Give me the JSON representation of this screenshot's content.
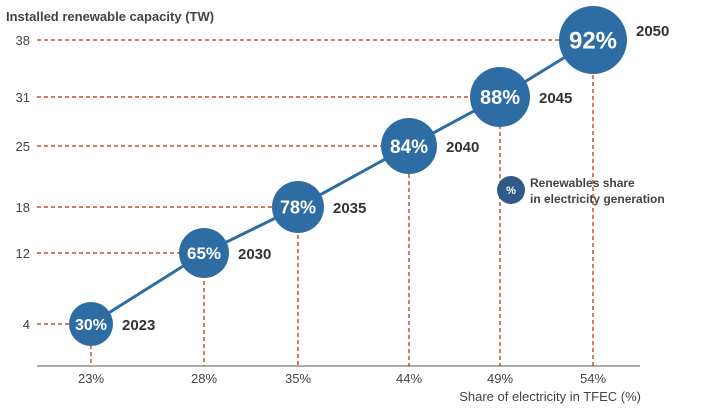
{
  "chart_data": {
    "type": "scatter",
    "ylabel": "Installed renewable capacity (TW)",
    "xlabel": "Share of electricity in TFEC (%)",
    "y_ticks": [
      4,
      12,
      18,
      25,
      31,
      38
    ],
    "x_ticks": [
      "23%",
      "28%",
      "35%",
      "44%",
      "49%",
      "54%"
    ],
    "points": [
      {
        "year": "2023",
        "x": 23,
        "y": 4,
        "renewables_share": "30%"
      },
      {
        "year": "2030",
        "x": 28,
        "y": 12,
        "renewables_share": "65%"
      },
      {
        "year": "2035",
        "x": 35,
        "y": 18,
        "renewables_share": "78%"
      },
      {
        "year": "2040",
        "x": 44,
        "y": 25,
        "renewables_share": "84%"
      },
      {
        "year": "2045",
        "x": 49,
        "y": 31,
        "renewables_share": "88%"
      },
      {
        "year": "2050",
        "x": 54,
        "y": 38,
        "renewables_share": "92%"
      }
    ],
    "legend": {
      "symbol": "%",
      "label_line1": "Renewables share",
      "label_line2": "in electricity generation"
    },
    "colors": {
      "bubble": "#2e6da4",
      "line": "#2e6da4",
      "guide": "#c8502a",
      "legend_bubble": "#2f5a8a",
      "axis": "#555555"
    }
  }
}
